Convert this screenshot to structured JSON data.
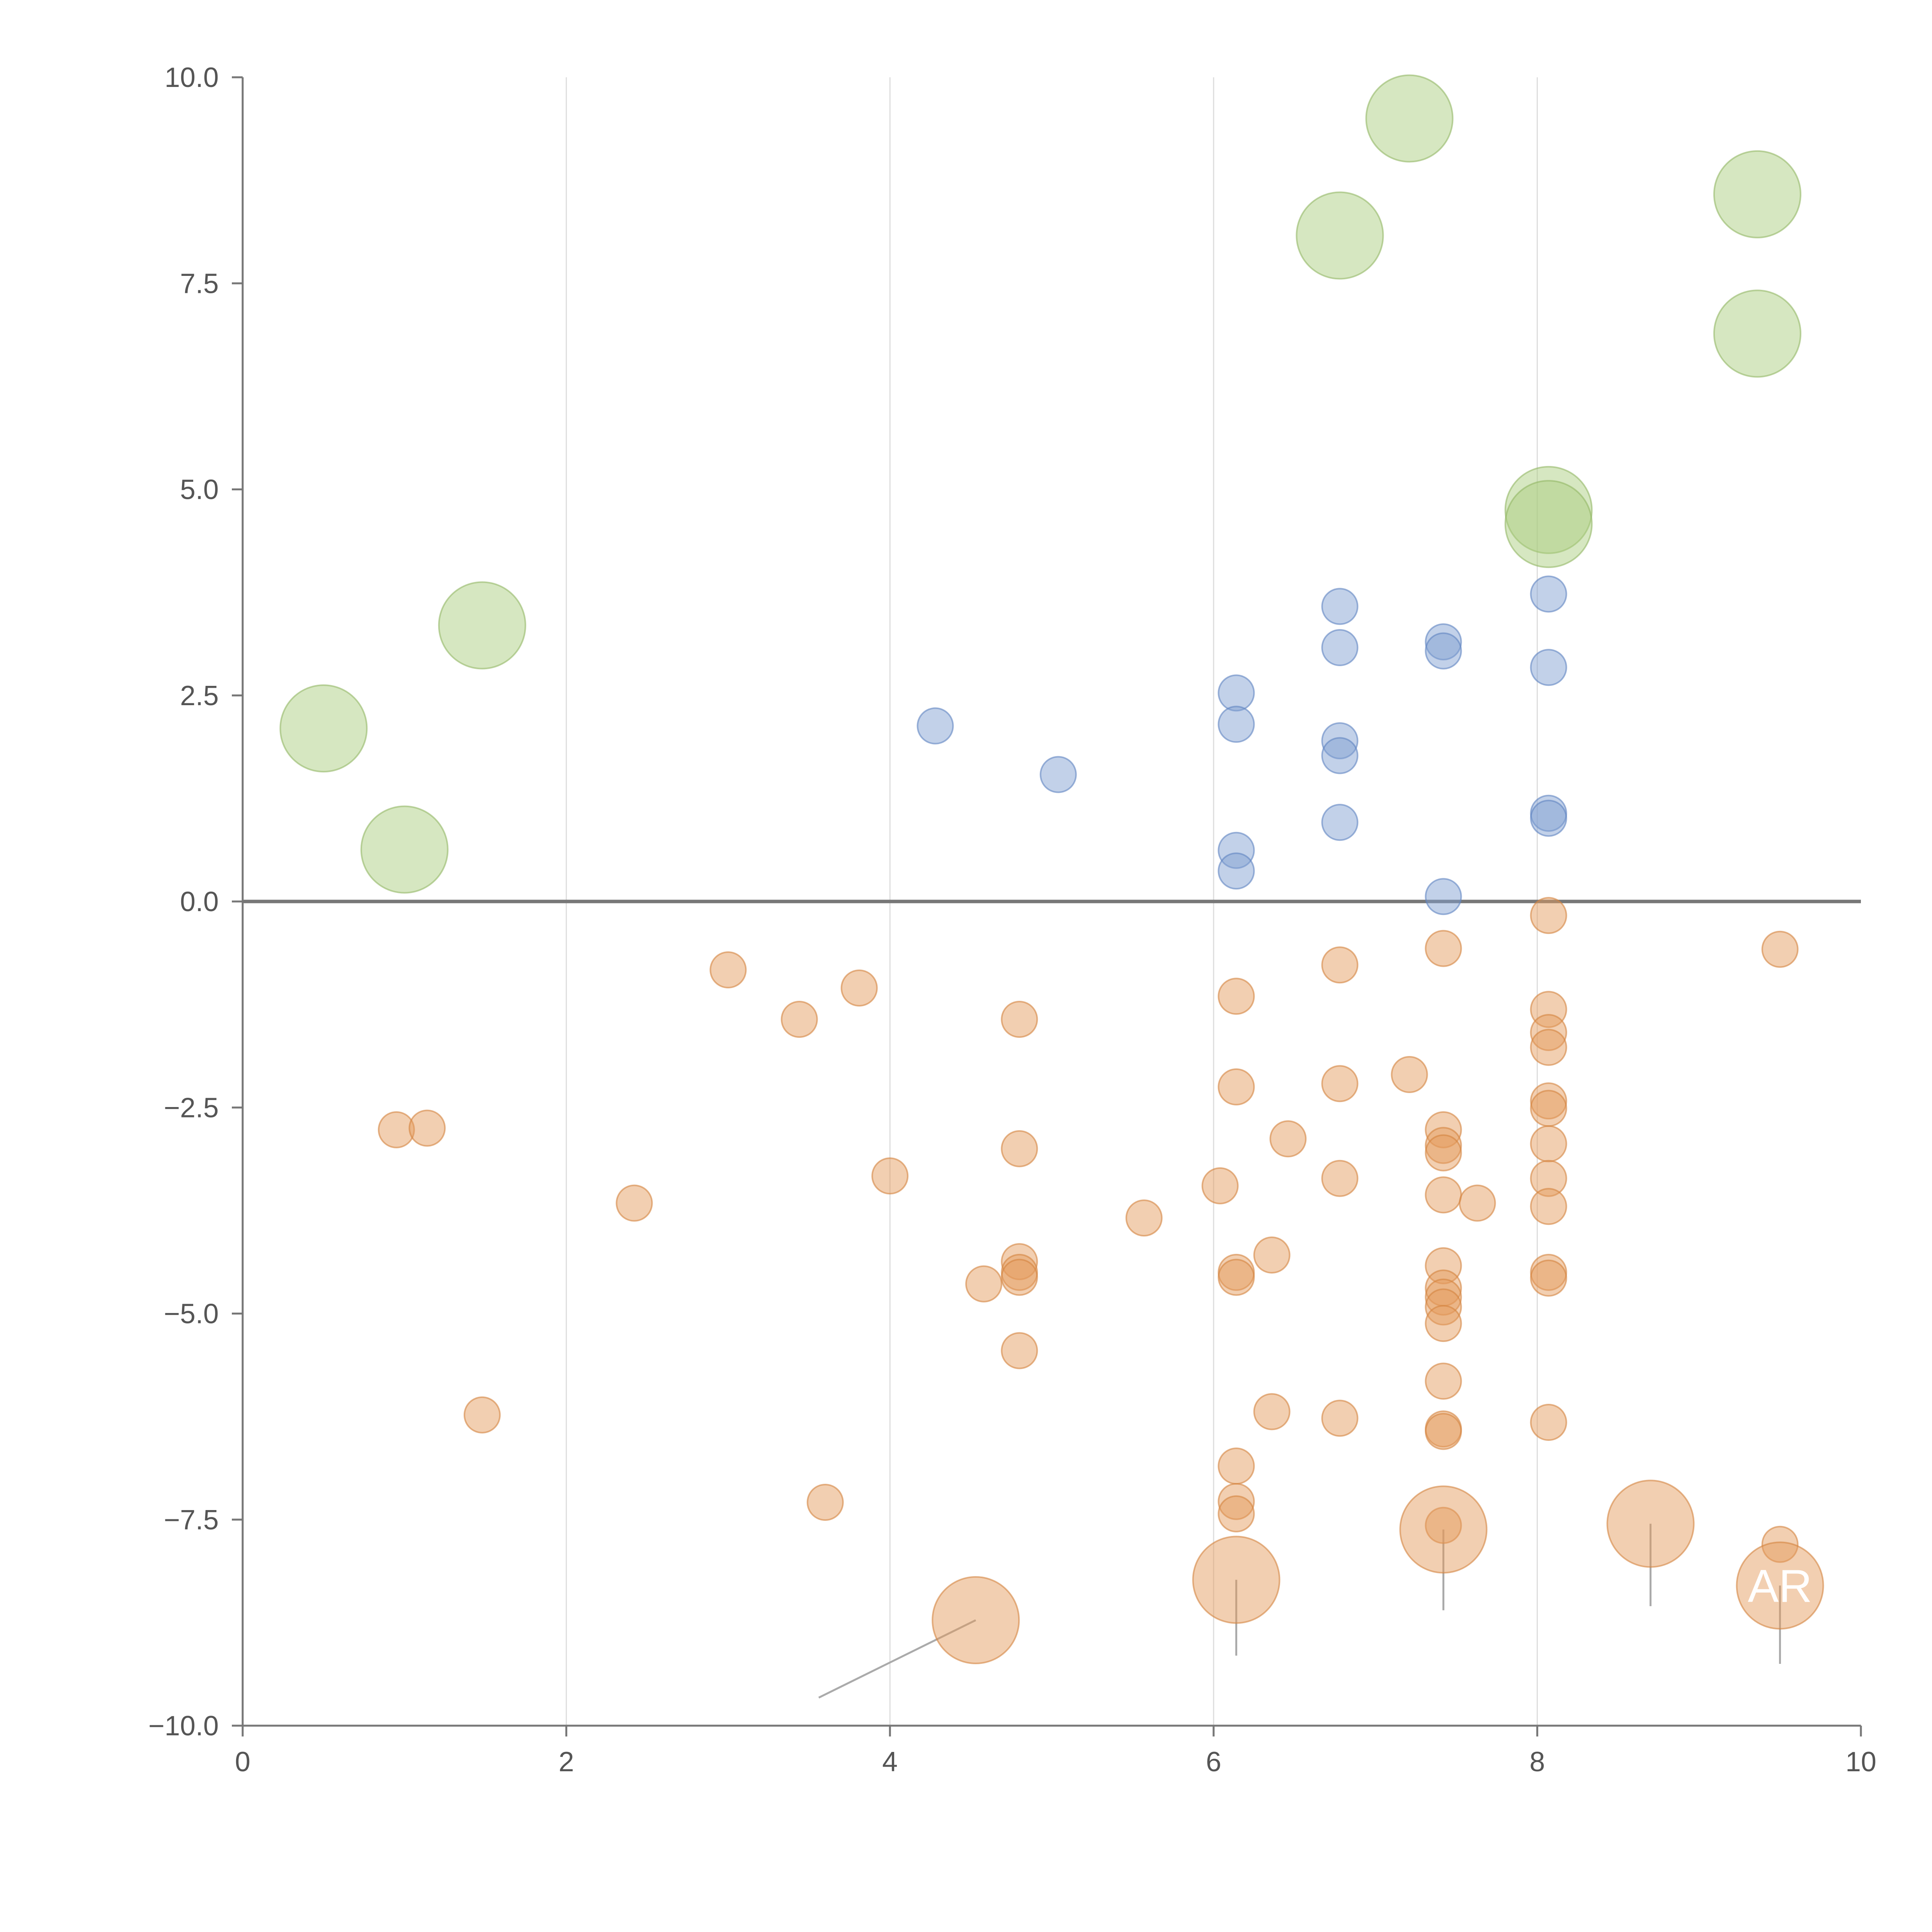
{
  "chart_data": {
    "type": "scatter",
    "title": "",
    "xlabel": "",
    "ylabel": "",
    "xlim": [
      0,
      10
    ],
    "ylim": [
      -10,
      10
    ],
    "grid": "vertical",
    "x_ticks": [
      "0",
      "2",
      "4",
      "6",
      "8",
      "10"
    ],
    "y_ticks": [
      "10.0",
      "7.5",
      "5.0",
      "2.5",
      "0.0",
      "−2.5",
      "−5.0",
      "−7.5",
      "−10.0"
    ],
    "x_tick_values": [
      0,
      2,
      4,
      6,
      8,
      10
    ],
    "y_tick_values": [
      10,
      7.5,
      5,
      2.5,
      0,
      -2.5,
      -5,
      -7.5,
      -10
    ],
    "colors": {
      "green": "#a9cc7e",
      "green_stroke": "#92b866",
      "blue": "#7f9fd1",
      "blue_stroke": "#5f84c2",
      "orange": "#e39b5c",
      "orange_stroke": "#d38440"
    },
    "series": [
      {
        "name": "green",
        "size": "large",
        "points": [
          [
            0.5,
            2.1
          ],
          [
            1.0,
            0.63
          ],
          [
            1.48,
            3.35
          ],
          [
            6.78,
            8.08
          ],
          [
            7.21,
            9.5
          ],
          [
            8.07,
            4.75
          ],
          [
            9.36,
            8.58
          ],
          [
            9.36,
            6.89
          ],
          [
            8.07,
            4.58
          ]
        ]
      },
      {
        "name": "blue",
        "size": "small",
        "points": [
          [
            4.28,
            2.13
          ],
          [
            5.04,
            1.54
          ],
          [
            6.14,
            2.53
          ],
          [
            6.14,
            2.15
          ],
          [
            6.14,
            0.62
          ],
          [
            6.14,
            0.37
          ],
          [
            6.78,
            3.58
          ],
          [
            6.78,
            3.08
          ],
          [
            6.78,
            1.95
          ],
          [
            6.78,
            1.77
          ],
          [
            6.78,
            0.96
          ],
          [
            7.42,
            3.15
          ],
          [
            7.42,
            3.04
          ],
          [
            7.42,
            0.06
          ],
          [
            8.07,
            3.73
          ],
          [
            8.07,
            2.84
          ],
          [
            8.07,
            1.07
          ],
          [
            8.07,
            1.01
          ]
        ]
      },
      {
        "name": "orange",
        "size": "small",
        "points": [
          [
            0.95,
            -2.77
          ],
          [
            1.14,
            -2.75
          ],
          [
            1.48,
            -6.23
          ],
          [
            2.42,
            -3.66
          ],
          [
            3.0,
            -0.83
          ],
          [
            3.44,
            -1.43
          ],
          [
            3.6,
            -7.29
          ],
          [
            3.81,
            -1.05
          ],
          [
            4.0,
            -3.33
          ],
          [
            4.58,
            -4.64
          ],
          [
            4.8,
            -1.43
          ],
          [
            4.8,
            -3.0
          ],
          [
            4.8,
            -4.37
          ],
          [
            4.8,
            -4.5
          ],
          [
            4.8,
            -4.56
          ],
          [
            4.8,
            -5.45
          ],
          [
            5.57,
            -3.84
          ],
          [
            6.04,
            -3.45
          ],
          [
            6.14,
            -1.15
          ],
          [
            6.14,
            -2.25
          ],
          [
            6.14,
            -4.5
          ],
          [
            6.14,
            -4.56
          ],
          [
            6.14,
            -6.85
          ],
          [
            6.14,
            -7.28
          ],
          [
            6.14,
            -7.43
          ],
          [
            6.36,
            -4.29
          ],
          [
            6.36,
            -6.19
          ],
          [
            6.46,
            -2.88
          ],
          [
            6.78,
            -0.77
          ],
          [
            6.78,
            -2.21
          ],
          [
            6.78,
            -3.36
          ],
          [
            6.78,
            -6.27
          ],
          [
            7.21,
            -2.1
          ],
          [
            7.42,
            -0.57
          ],
          [
            7.42,
            -2.77
          ],
          [
            7.42,
            -2.96
          ],
          [
            7.42,
            -3.05
          ],
          [
            7.42,
            -3.56
          ],
          [
            7.42,
            -4.42
          ],
          [
            7.42,
            -4.69
          ],
          [
            7.42,
            -4.8
          ],
          [
            7.42,
            -4.92
          ],
          [
            7.42,
            -5.12
          ],
          [
            7.42,
            -5.82
          ],
          [
            7.42,
            -6.4
          ],
          [
            7.42,
            -6.43
          ],
          [
            7.42,
            -7.57
          ],
          [
            7.63,
            -3.66
          ],
          [
            8.07,
            -0.17
          ],
          [
            8.07,
            -1.31
          ],
          [
            8.07,
            -1.59
          ],
          [
            8.07,
            -1.77
          ],
          [
            8.07,
            -2.42
          ],
          [
            8.07,
            -2.51
          ],
          [
            8.07,
            -2.94
          ],
          [
            8.07,
            -3.36
          ],
          [
            8.07,
            -3.7
          ],
          [
            8.07,
            -4.5
          ],
          [
            8.07,
            -4.57
          ],
          [
            8.07,
            -6.32
          ],
          [
            9.5,
            -0.58
          ],
          [
            9.5,
            -7.8
          ]
        ]
      },
      {
        "name": "orange-large",
        "size": "large",
        "points": [
          [
            4.53,
            -8.72
          ],
          [
            6.14,
            -8.23
          ],
          [
            7.42,
            -7.62
          ],
          [
            8.7,
            -7.55
          ],
          [
            9.5,
            -8.3
          ]
        ]
      }
    ],
    "annotations": [
      {
        "label": "",
        "point": [
          4.53,
          -8.72
        ],
        "leader_to": [
          3.56,
          -9.66
        ]
      },
      {
        "label": "",
        "point": [
          6.14,
          -8.23
        ],
        "leader_to": [
          6.14,
          -9.15
        ]
      },
      {
        "label": "",
        "point": [
          7.42,
          -7.62
        ],
        "leader_to": [
          7.42,
          -8.6
        ]
      },
      {
        "label": "",
        "point": [
          8.7,
          -7.55
        ],
        "leader_to": [
          8.7,
          -8.55
        ]
      },
      {
        "label": "AR",
        "point": [
          9.5,
          -8.3
        ],
        "leader_to": [
          9.5,
          -9.25
        ]
      }
    ]
  }
}
